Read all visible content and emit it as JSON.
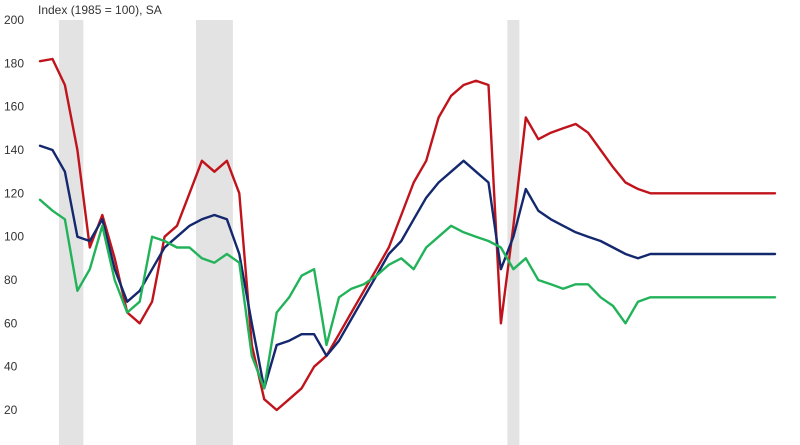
{
  "chart_data": {
    "type": "line",
    "title": "",
    "ylabel": "Index (1985 = 100), SA",
    "xlabel": "",
    "ylim": [
      20,
      200
    ],
    "yticks": [
      "20",
      "40",
      "60",
      "80",
      "100",
      "120",
      "140",
      "160",
      "180",
      "200"
    ],
    "grid": false,
    "legend": "none",
    "x_count": 60,
    "recession_bands": [
      [
        2,
        3
      ],
      [
        13,
        15
      ],
      [
        38,
        38
      ]
    ],
    "series": [
      {
        "color": "#c0141c",
        "values": [
          181,
          182,
          170,
          140,
          95,
          110,
          90,
          65,
          60,
          70,
          100,
          105,
          120,
          135,
          130,
          135,
          120,
          50,
          25,
          20,
          25,
          30,
          40,
          45,
          55,
          65,
          75,
          85,
          95,
          110,
          125,
          135,
          155,
          165,
          170,
          172,
          170,
          60,
          105,
          155,
          145,
          148,
          150,
          152,
          148,
          140,
          132,
          125,
          122,
          120,
          120,
          120,
          120,
          120,
          120,
          120,
          120,
          120,
          120,
          120
        ]
      },
      {
        "color": "#14286e",
        "values": [
          142,
          140,
          130,
          100,
          98,
          108,
          85,
          70,
          75,
          85,
          95,
          100,
          105,
          108,
          110,
          108,
          92,
          60,
          30,
          50,
          52,
          55,
          55,
          45,
          52,
          62,
          72,
          82,
          92,
          98,
          108,
          118,
          125,
          130,
          135,
          130,
          125,
          85,
          100,
          122,
          112,
          108,
          105,
          102,
          100,
          98,
          95,
          92,
          90,
          92,
          92,
          92,
          92,
          92,
          92,
          92,
          92,
          92,
          92,
          92
        ]
      },
      {
        "color": "#22b35a",
        "values": [
          117,
          112,
          108,
          75,
          85,
          105,
          80,
          65,
          70,
          100,
          98,
          95,
          95,
          90,
          88,
          92,
          88,
          45,
          30,
          65,
          72,
          82,
          85,
          50,
          72,
          76,
          78,
          82,
          87,
          90,
          85,
          95,
          100,
          105,
          102,
          100,
          98,
          95,
          85,
          90,
          80,
          78,
          76,
          78,
          78,
          72,
          68,
          60,
          70,
          72,
          72,
          72,
          72,
          72,
          72,
          72,
          72,
          72,
          72,
          72
        ]
      }
    ]
  }
}
